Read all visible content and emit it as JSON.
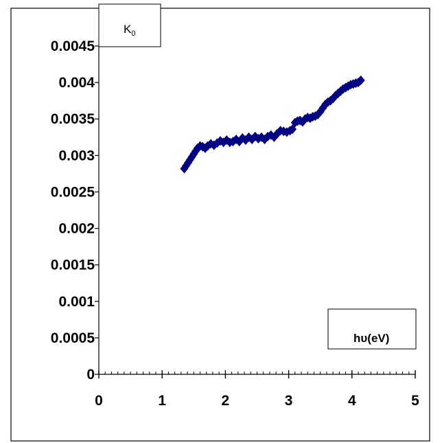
{
  "chart_data": {
    "type": "scatter",
    "title": "",
    "ylabel": "K",
    "ylabel_subscript": "0",
    "xlabel": "hυ(eV)",
    "xlim": [
      0,
      5
    ],
    "ylim": [
      0,
      0.0045
    ],
    "grid": false,
    "legend": "none",
    "x_ticks": [
      0,
      1,
      2,
      3,
      4,
      5
    ],
    "x_tick_labels": [
      "0",
      "1",
      "2",
      "3",
      "4",
      "5"
    ],
    "y_ticks": [
      0,
      0.0005,
      0.001,
      0.0015,
      0.002,
      0.0025,
      0.003,
      0.0035,
      0.004,
      0.0045
    ],
    "y_tick_labels": [
      "0",
      "0.0005",
      "0.001",
      "0.0015",
      "0.002",
      "0.0025",
      "0.003",
      "0.0035",
      "0.004",
      "0.0045"
    ],
    "marker": "diamond",
    "marker_color": "#000080",
    "series": [
      {
        "x": [
          1.35,
          1.38,
          1.41,
          1.44,
          1.47,
          1.5,
          1.53,
          1.56,
          1.6,
          1.64,
          1.68,
          1.72,
          1.77,
          1.82,
          1.87,
          1.92,
          1.97,
          2.02,
          2.07,
          2.12,
          2.17,
          2.22,
          2.27,
          2.32,
          2.37,
          2.42,
          2.47,
          2.52,
          2.57,
          2.62,
          2.67,
          2.72,
          2.77,
          2.82,
          2.87,
          2.92,
          2.97,
          3.02,
          3.06,
          3.1,
          3.14,
          3.18,
          3.22,
          3.26,
          3.3,
          3.34,
          3.38,
          3.42,
          3.46,
          3.5,
          3.54,
          3.58,
          3.62,
          3.66,
          3.7,
          3.74,
          3.78,
          3.82,
          3.86,
          3.9,
          3.94,
          3.98,
          4.02,
          4.06,
          4.1,
          4.14
        ],
        "y": [
          0.00282,
          0.00286,
          0.0029,
          0.00294,
          0.00298,
          0.00302,
          0.00306,
          0.0031,
          0.00313,
          0.00312,
          0.0031,
          0.00313,
          0.00316,
          0.00314,
          0.00317,
          0.0032,
          0.00318,
          0.00321,
          0.00318,
          0.00319,
          0.00322,
          0.00319,
          0.00324,
          0.00321,
          0.00325,
          0.00322,
          0.00326,
          0.00323,
          0.00325,
          0.00322,
          0.00326,
          0.00328,
          0.00325,
          0.0033,
          0.00334,
          0.00333,
          0.00332,
          0.00334,
          0.00336,
          0.00345,
          0.00347,
          0.00348,
          0.00346,
          0.0035,
          0.00352,
          0.00351,
          0.00353,
          0.00354,
          0.00356,
          0.0036,
          0.00365,
          0.0037,
          0.00373,
          0.00375,
          0.00378,
          0.00382,
          0.00385,
          0.00388,
          0.00391,
          0.00393,
          0.00395,
          0.00397,
          0.00398,
          0.00399,
          0.004,
          0.00403
        ]
      }
    ]
  }
}
